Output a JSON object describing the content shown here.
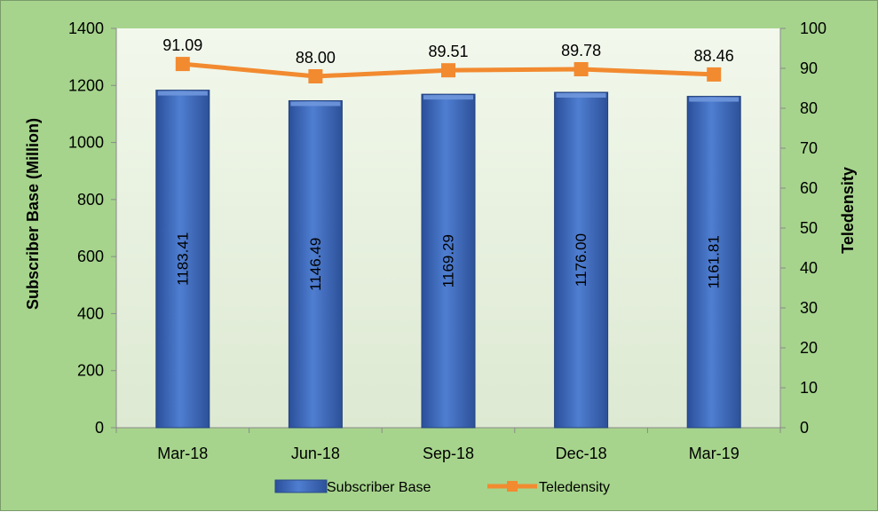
{
  "chart_data": {
    "type": "bar",
    "categories": [
      "Mar-18",
      "Jun-18",
      "Sep-18",
      "Dec-18",
      "Mar-19"
    ],
    "series": [
      {
        "name": "Subscriber Base",
        "type": "bar",
        "axis": "left",
        "color": "#4472c4",
        "values": [
          1183.41,
          1146.49,
          1169.29,
          1176.0,
          1161.81
        ],
        "labels": [
          "1183.41",
          "1146.49",
          "1169.29",
          "1176.00",
          "1161.81"
        ]
      },
      {
        "name": "Teledensity",
        "type": "line",
        "axis": "right",
        "color": "#f28a30",
        "values": [
          91.09,
          88.0,
          89.51,
          89.78,
          88.46
        ],
        "labels": [
          "91.09",
          "88.00",
          "89.51",
          "89.78",
          "88.46"
        ]
      }
    ],
    "ylabel": "Subscriber Base (Million)",
    "y2label": "Teledensity",
    "ylim": [
      0,
      1400
    ],
    "y2lim": [
      0,
      100
    ],
    "yticks": [
      "0",
      "200",
      "400",
      "600",
      "800",
      "1000",
      "1200",
      "1400"
    ],
    "y2ticks": [
      "0",
      "10",
      "20",
      "30",
      "40",
      "50",
      "60",
      "70",
      "80",
      "90",
      "100"
    ],
    "grid": false,
    "legend_position": "bottom"
  }
}
